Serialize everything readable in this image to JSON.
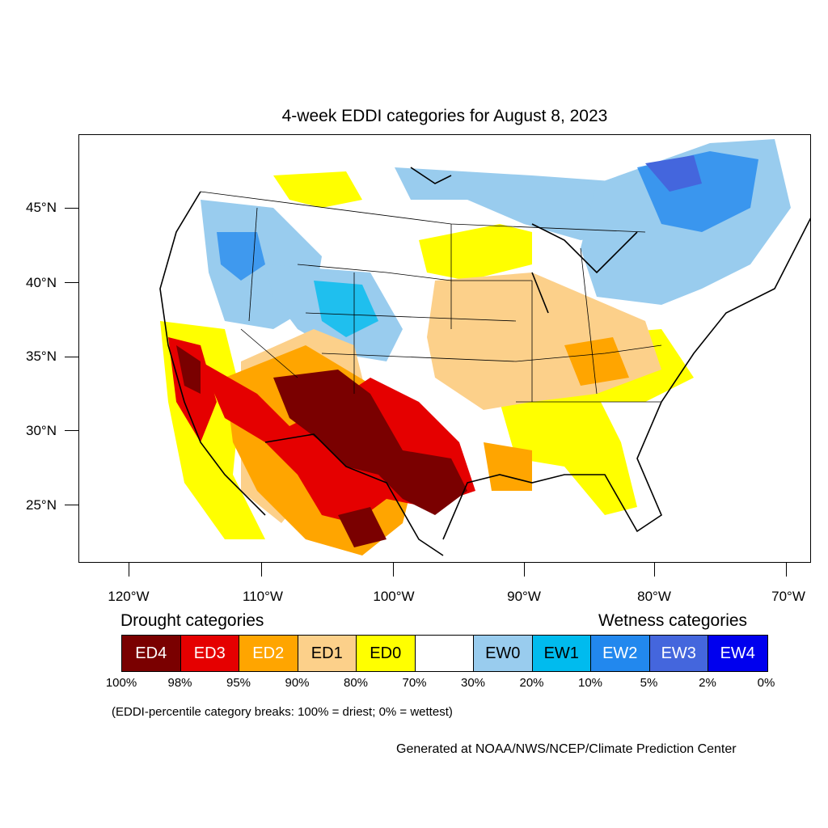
{
  "title": "4-week EDDI categories for August 8, 2023",
  "lat_labels": [
    "45°N",
    "40°N",
    "35°N",
    "30°N",
    "25°N"
  ],
  "lon_labels": [
    "120°W",
    "110°W",
    "100°W",
    "90°W",
    "80°W",
    "70°W"
  ],
  "legend": {
    "drought_heading": "Drought categories",
    "wetness_heading": "Wetness categories",
    "categories": [
      {
        "label": "ED4",
        "color": "#7a0000",
        "text_color": "#ffffff"
      },
      {
        "label": "ED3",
        "color": "#e50000",
        "text_color": "#ffffff"
      },
      {
        "label": "ED2",
        "color": "#ffa500",
        "text_color": "#ffffff"
      },
      {
        "label": "ED1",
        "color": "#fcd08a",
        "text_color": "#000000"
      },
      {
        "label": "ED0",
        "color": "#ffff00",
        "text_color": "#000000"
      },
      {
        "label": "",
        "color": "#ffffff",
        "text_color": "#000000"
      },
      {
        "label": "EW0",
        "color": "#99ccee",
        "text_color": "#000000"
      },
      {
        "label": "EW1",
        "color": "#00bbee",
        "text_color": "#000000"
      },
      {
        "label": "EW2",
        "color": "#2288ee",
        "text_color": "#ffffff"
      },
      {
        "label": "EW3",
        "color": "#4466dd",
        "text_color": "#ffffff"
      },
      {
        "label": "EW4",
        "color": "#0000ee",
        "text_color": "#ffffff"
      }
    ],
    "percent_breaks": [
      "100%",
      "98%",
      "95%",
      "90%",
      "80%",
      "70%",
      "30%",
      "20%",
      "10%",
      "5%",
      "2%",
      "0%"
    ]
  },
  "note": "(EDDI-percentile category breaks: 100% = driest; 0% = wettest)",
  "credit": "Generated at NOAA/NWS/NCEP/Climate Prediction Center"
}
